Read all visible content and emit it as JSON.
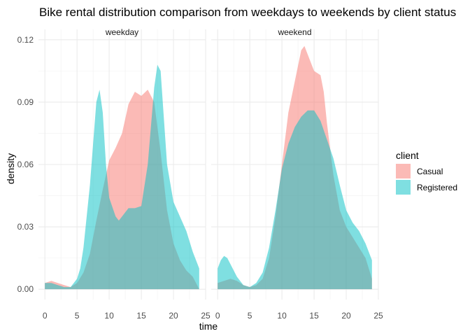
{
  "chart_data": {
    "type": "area",
    "title": "Bike rental distribution comparison from weekdays to weekends by client status",
    "xlabel": "time",
    "ylabel": "density",
    "xlim": [
      -1,
      25
    ],
    "ylim": [
      -0.005,
      0.125
    ],
    "x_ticks": [
      0,
      5,
      10,
      15,
      20,
      25
    ],
    "y_ticks": [
      0.0,
      0.03,
      0.06,
      0.09,
      0.12
    ],
    "y_tick_labels": [
      "0.00",
      "0.03",
      "0.06",
      "0.09",
      "0.12"
    ],
    "grid": true,
    "legend": {
      "title": "client",
      "position": "right",
      "entries": [
        {
          "name": "Casual",
          "color": "#F8766D"
        },
        {
          "name": "Registered",
          "color": "#00BFC4"
        }
      ]
    },
    "facets": [
      {
        "label": "weekday",
        "series": [
          {
            "name": "Casual",
            "x": [
              0,
              1,
              2,
              3,
              4,
              5,
              6,
              7,
              8,
              9,
              10,
              11,
              12,
              13,
              14,
              15,
              16,
              17,
              18,
              19,
              20,
              21,
              22,
              23,
              24
            ],
            "y": [
              0.003,
              0.004,
              0.003,
              0.002,
              0.001,
              0.003,
              0.008,
              0.017,
              0.033,
              0.048,
              0.062,
              0.068,
              0.075,
              0.089,
              0.095,
              0.093,
              0.096,
              0.09,
              0.066,
              0.038,
              0.022,
              0.014,
              0.009,
              0.006,
              0.0
            ]
          },
          {
            "name": "Registered",
            "x": [
              0,
              1,
              2,
              3,
              4,
              5,
              5.5,
              6,
              7,
              7.5,
              8,
              8.5,
              9,
              9.5,
              10,
              11,
              11.5,
              12,
              13,
              14,
              15,
              16,
              17,
              17.5,
              18,
              19,
              20,
              21,
              22,
              23,
              24
            ],
            "y": [
              0.003,
              0.003,
              0.002,
              0.001,
              0.001,
              0.005,
              0.01,
              0.02,
              0.05,
              0.07,
              0.09,
              0.096,
              0.085,
              0.06,
              0.044,
              0.035,
              0.033,
              0.035,
              0.039,
              0.039,
              0.04,
              0.06,
              0.097,
              0.108,
              0.105,
              0.06,
              0.042,
              0.035,
              0.028,
              0.018,
              0.01
            ]
          }
        ]
      },
      {
        "label": "weekend",
        "series": [
          {
            "name": "Casual",
            "x": [
              0,
              1,
              2,
              3,
              4,
              5,
              6,
              7,
              8,
              9,
              10,
              11,
              12,
              13,
              13.5,
              14,
              15,
              16,
              16.5,
              17,
              18,
              19,
              20,
              21,
              22,
              23,
              24
            ],
            "y": [
              0.003,
              0.004,
              0.005,
              0.004,
              0.002,
              0.001,
              0.002,
              0.005,
              0.015,
              0.035,
              0.06,
              0.085,
              0.1,
              0.115,
              0.117,
              0.113,
              0.105,
              0.103,
              0.095,
              0.08,
              0.055,
              0.038,
              0.03,
              0.025,
              0.02,
              0.015,
              0.005
            ]
          },
          {
            "name": "Registered",
            "x": [
              0,
              0.5,
              1,
              1.5,
              2,
              3,
              4,
              5,
              6,
              7,
              8,
              9,
              10,
              11,
              12,
              13,
              14,
              15,
              16,
              17,
              18,
              19,
              20,
              21,
              22,
              23,
              24
            ],
            "y": [
              0.01,
              0.014,
              0.016,
              0.015,
              0.012,
              0.006,
              0.002,
              0.001,
              0.003,
              0.008,
              0.02,
              0.038,
              0.058,
              0.07,
              0.078,
              0.083,
              0.086,
              0.086,
              0.081,
              0.072,
              0.063,
              0.05,
              0.038,
              0.032,
              0.028,
              0.022,
              0.014
            ]
          }
        ]
      }
    ]
  }
}
